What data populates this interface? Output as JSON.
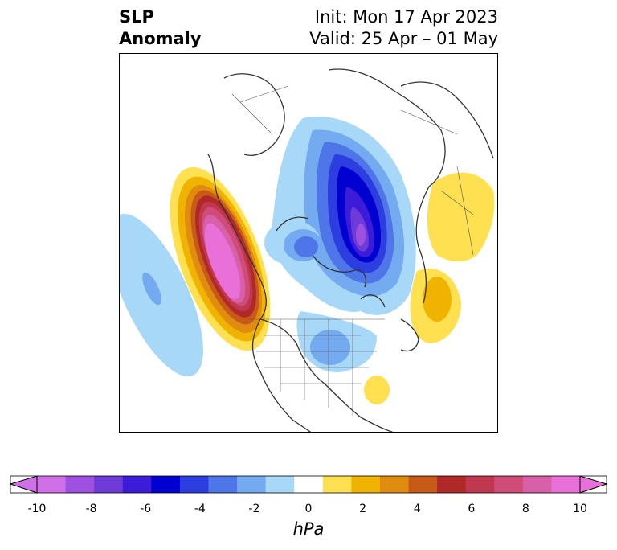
{
  "title": {
    "left_line1": "SLP",
    "left_line2": "Anomaly",
    "right_line1": "Init: Mon 17 Apr 2023",
    "right_line2": "Valid: 25 Apr – 01 May"
  },
  "colorbar": {
    "unit": "hPa",
    "tick_labels": [
      "-10",
      "-8",
      "-6",
      "-4",
      "-2",
      "0",
      "2",
      "4",
      "6",
      "8",
      "10"
    ],
    "levels": [
      -10,
      -9,
      -8,
      -7,
      -6,
      -5,
      -4,
      -3,
      -2,
      -1,
      1,
      2,
      3,
      4,
      5,
      6,
      7,
      8,
      9,
      10
    ],
    "colors": [
      "#d070e8",
      "#9e50e0",
      "#6e3ad8",
      "#3c1cd8",
      "#0000d0",
      "#2c3ee0",
      "#4f76e8",
      "#74aaf0",
      "#a8d8f8",
      "#ffffff",
      "#ffe050",
      "#f0b400",
      "#e08c10",
      "#c85a18",
      "#b02828",
      "#c03850",
      "#d04c78",
      "#d860a8",
      "#e870d8"
    ],
    "extend_colors": {
      "low": "#d070e8",
      "high": "#e870d8"
    }
  },
  "map": {
    "projection": "north-polar-stereographic",
    "region": "Northern Hemisphere",
    "features": [
      {
        "name": "Positive anomaly over NE Pacific / Gulf of Alaska",
        "max_hPa": 10
      },
      {
        "name": "Negative anomaly over Barents-Kara Sea region",
        "min_hPa": -10
      },
      {
        "name": "Positive anomaly over Western Europe",
        "max_hPa": 4
      },
      {
        "name": "Negative anomaly over Hudson Bay / NE Canada",
        "min_hPa": -4
      },
      {
        "name": "Weak positive anomaly over western Atlantic",
        "max_hPa": 2
      }
    ]
  }
}
